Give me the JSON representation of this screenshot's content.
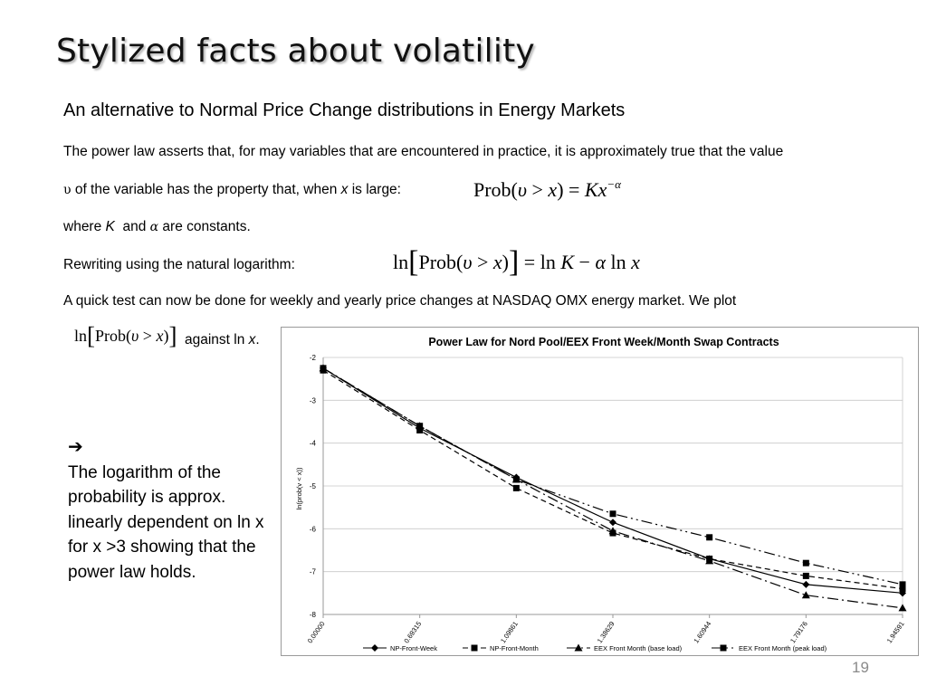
{
  "slide": {
    "title": "Stylized facts about volatility",
    "subtitle": "An alternative to Normal Price Change distributions in Energy Markets",
    "para1": "The power law asserts that, for may variables that are encountered in practice, it is approximately true that the value",
    "para2_symbol": "υ",
    "para2_a": " of the variable has the property that, when ",
    "para2_x": "x",
    "para2_b": " is large:",
    "para3_a": "where ",
    "para3_K": "K",
    "para3_b": "  and ",
    "para3_alpha": "α",
    "para3_c": " are constants.",
    "para4": "Rewriting using the natural logarithm:",
    "para5": "A quick test can now be done for weekly and yearly price changes at NASDAQ OMX energy market. We plot",
    "para6_a": "against ln ",
    "para6_x": "x",
    "para6_b": ".",
    "conclusion_arrow": "➔",
    "conclusion": "The logarithm of the probability is approx. linearly dependent on ln x for x >3 showing that the power law holds.",
    "page_number": "19"
  },
  "formula1": {
    "lhs": "Prob(",
    "var": "υ",
    "gt": " > ",
    "x": "x",
    "close": ") = ",
    "K": "Kx",
    "exp": "−α"
  },
  "formula2": {
    "ln": "ln",
    "prob": "Prob(",
    "var": "υ",
    "gt": " > ",
    "x": "x",
    "close": ")",
    "rhs": " = ln ",
    "K": "K",
    "minus": " − ",
    "alpha": "α",
    "lnx": " ln ",
    "x2": "x"
  },
  "formula3": {
    "ln": "ln",
    "prob": "Prob(",
    "var": "υ",
    "gt": " > ",
    "x": "x",
    "close": ")"
  },
  "chart_data": {
    "type": "line",
    "title": "Power Law for Nord Pool/EEX Front Week/Month Swap Contracts",
    "xlabel": "",
    "ylabel": "ln(prob(v < x))",
    "categories": [
      "0.00000",
      "0.69315",
      "1.09861",
      "1.38629",
      "1.60944",
      "1.79176",
      "1.94591"
    ],
    "ylim": [
      -8,
      -2
    ],
    "yticks": [
      -2,
      -3,
      -4,
      -5,
      -6,
      -7,
      -8
    ],
    "grid": true,
    "legend_position": "bottom",
    "series": [
      {
        "name": "NP-Front-Week",
        "marker": "diamond",
        "dash": "",
        "values": [
          -2.25,
          -3.65,
          -4.8,
          -5.85,
          -6.7,
          -7.3,
          -7.5
        ]
      },
      {
        "name": "NP-Front-Month",
        "marker": "square",
        "dash": "6,4",
        "values": [
          -2.3,
          -3.7,
          -5.05,
          -6.1,
          -6.7,
          -7.1,
          -7.4
        ]
      },
      {
        "name": "EEX Front Month (base load)",
        "marker": "triangle",
        "dash": "12,4,2,4",
        "values": [
          -2.25,
          -3.6,
          -4.85,
          -6.05,
          -6.75,
          -7.55,
          -7.85
        ]
      },
      {
        "name": "EEX Front Month (peak load)",
        "marker": "square",
        "dash": "12,4,2,4,2,4",
        "values": [
          -2.25,
          -3.6,
          -4.85,
          -5.65,
          -6.2,
          -6.8,
          -7.3
        ]
      }
    ]
  }
}
